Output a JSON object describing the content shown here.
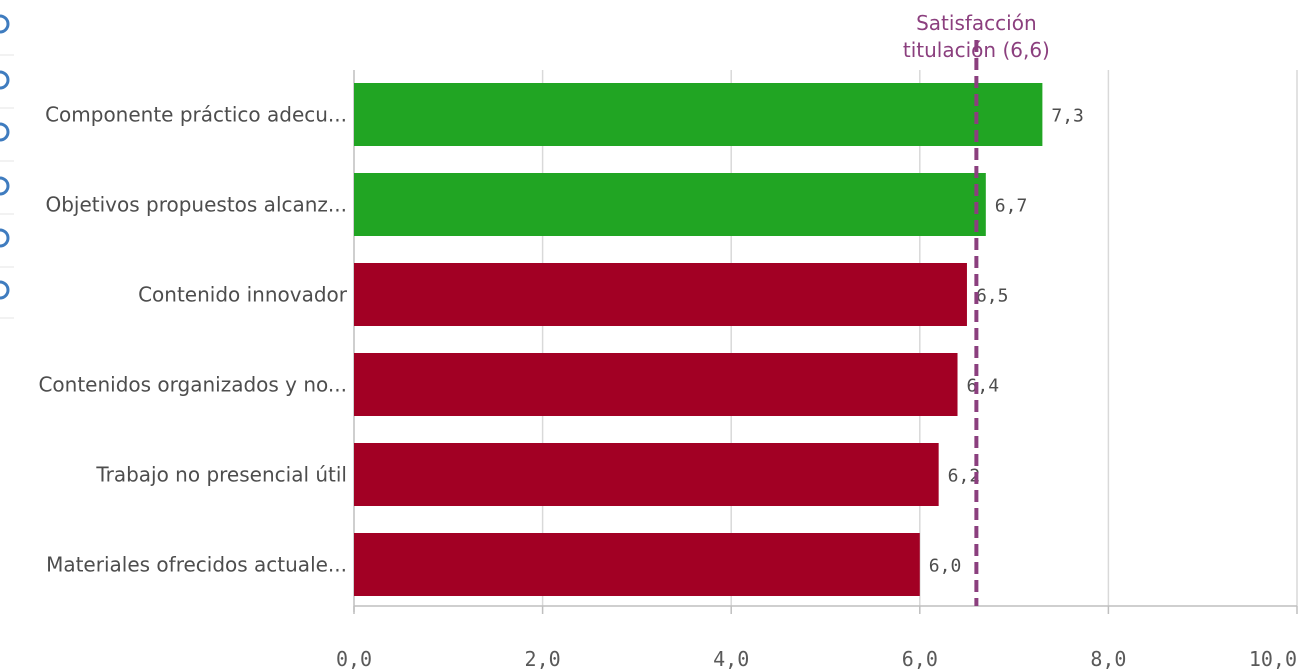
{
  "chart_data": {
    "type": "bar",
    "orientation": "horizontal",
    "categories": [
      "Componente práctico adecu...",
      "Objetivos propuestos alcanz...",
      "Contenido innovador",
      "Contenidos organizados y no...",
      "Trabajo no presencial útil",
      "Materiales ofrecidos actuale..."
    ],
    "values": [
      7.3,
      6.7,
      6.5,
      6.4,
      6.2,
      6.0
    ],
    "value_labels": [
      "7,3",
      "6,7",
      "6,5",
      "6,4",
      "6,2",
      "6,0"
    ],
    "bar_colors": [
      "#21a523",
      "#21a523",
      "#a20024",
      "#a20024",
      "#a20024",
      "#a20024"
    ],
    "xlim": [
      0,
      10
    ],
    "x_ticks": [
      0,
      2,
      4,
      6,
      8,
      10
    ],
    "x_tick_labels": [
      "0,0",
      "2,0",
      "4,0",
      "6,0",
      "8,0",
      "10,0"
    ],
    "grid": true,
    "reference_line": {
      "value": 6.6,
      "label_lines": [
        "Satisfacción",
        "titulación (6,6)"
      ],
      "color": "#8b3f7e",
      "style": "dashed"
    },
    "colors": {
      "above": "#21a523",
      "below": "#a20024",
      "grid": "#d9d9d9",
      "axis": "#bfbfbf"
    }
  }
}
